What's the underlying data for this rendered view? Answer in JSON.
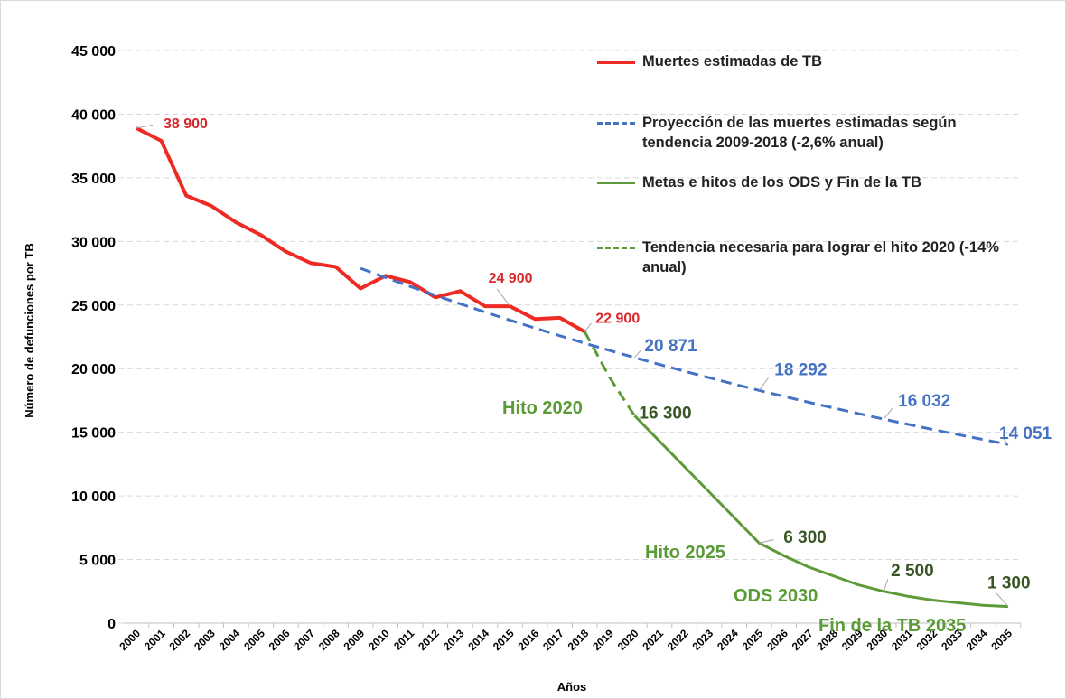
{
  "chart_data": {
    "type": "line",
    "y_label": "Número de defunciones por TB",
    "x_label": "Años",
    "categories": [
      "2000",
      "2001",
      "2002",
      "2003",
      "2004",
      "2005",
      "2006",
      "2007",
      "2008",
      "2009",
      "2010",
      "2011",
      "2012",
      "2013",
      "2014",
      "2015",
      "2016",
      "2017",
      "2018",
      "2019",
      "2020",
      "2021",
      "2022",
      "2023",
      "2024",
      "2025",
      "2026",
      "2027",
      "2028",
      "2029",
      "2030",
      "2031",
      "2032",
      "2033",
      "2034",
      "2035"
    ],
    "ylim": [
      0,
      45000
    ],
    "yticks": [
      0,
      {
        "value": 5000,
        "label": "5 000"
      },
      {
        "value": 10000,
        "label": "10 000"
      },
      {
        "value": 15000,
        "label": "15 000"
      },
      {
        "value": 20000,
        "label": "20 000"
      },
      {
        "value": 25000,
        "label": "25 000"
      },
      {
        "value": 30000,
        "label": "30 000"
      },
      {
        "value": 35000,
        "label": "35 000"
      },
      {
        "value": 40000,
        "label": "40 000"
      },
      {
        "value": 45000,
        "label": "45 000"
      }
    ],
    "grid": true,
    "series": [
      {
        "name": "Muertes estimadas de TB",
        "color": "#ee2a24",
        "label_color": "#d8262a",
        "dashed": false,
        "width": 4,
        "values": [
          38900,
          37900,
          33600,
          32800,
          31500,
          30500,
          29200,
          28300,
          28000,
          26300,
          27300,
          26800,
          25600,
          26100,
          24900,
          24900,
          23900,
          24000,
          22900,
          null,
          null,
          null,
          null,
          null,
          null,
          null,
          null,
          null,
          null,
          null,
          null,
          null,
          null,
          null,
          null,
          null
        ],
        "value_labels": [
          "38 900",
          null,
          null,
          null,
          null,
          null,
          null,
          null,
          null,
          null,
          null,
          null,
          null,
          null,
          null,
          "24 900",
          null,
          null,
          "22 900",
          null,
          null,
          null,
          null,
          null,
          null,
          null,
          null,
          null,
          null,
          null,
          null,
          null,
          null,
          null,
          null,
          null
        ]
      },
      {
        "name": "Proyección de las muertes estimadas según tendencia 2009-2018 (-2,6% anual)",
        "color": "#4472c4",
        "label_color": "#4472c4",
        "dashed": true,
        "width": 3,
        "values": [
          null,
          null,
          null,
          null,
          null,
          null,
          null,
          null,
          null,
          27884,
          27160,
          26454,
          25766,
          25096,
          24444,
          23809,
          23190,
          22587,
          22000,
          21428,
          20871,
          20328,
          19800,
          19285,
          18783,
          18292,
          17817,
          17354,
          16903,
          16463,
          16032,
          15615,
          15209,
          14814,
          14428,
          14051
        ],
        "value_labels": [
          null,
          null,
          null,
          null,
          null,
          null,
          null,
          null,
          null,
          null,
          null,
          null,
          null,
          null,
          null,
          null,
          null,
          null,
          null,
          null,
          "20 871",
          null,
          null,
          null,
          null,
          "18 292",
          null,
          null,
          null,
          null,
          "16 032",
          null,
          null,
          null,
          null,
          "14 051"
        ]
      },
      {
        "name": "Metas e hitos de los ODS y Fin de la TB",
        "color": "#5f9a3a",
        "label_color": "#375623",
        "dashed": false,
        "width": 3,
        "values": [
          null,
          null,
          null,
          null,
          null,
          null,
          null,
          null,
          null,
          null,
          null,
          null,
          null,
          null,
          null,
          null,
          null,
          null,
          null,
          null,
          16300,
          14300,
          12300,
          10300,
          8300,
          6300,
          5300,
          4400,
          3700,
          3000,
          2500,
          2100,
          1800,
          1600,
          1400,
          1300
        ],
        "value_labels": [
          null,
          null,
          null,
          null,
          null,
          null,
          null,
          null,
          null,
          null,
          null,
          null,
          null,
          null,
          null,
          null,
          null,
          null,
          null,
          null,
          "16 300",
          null,
          null,
          null,
          null,
          "6 300",
          null,
          null,
          null,
          null,
          "2 500",
          null,
          null,
          null,
          null,
          "1 300"
        ]
      },
      {
        "name": "Tendencia necesaria para lograr el hito 2020 (-14% anual)",
        "color": "#5f9a3a",
        "label_color": "#375623",
        "dashed": true,
        "width": 3,
        "values": [
          null,
          null,
          null,
          null,
          null,
          null,
          null,
          null,
          null,
          null,
          null,
          null,
          null,
          null,
          null,
          null,
          null,
          null,
          22900,
          19300,
          16300,
          null,
          null,
          null,
          null,
          null,
          null,
          null,
          null,
          null,
          null,
          null,
          null,
          null,
          null,
          null
        ]
      }
    ],
    "annotations": [
      "Hito 2020",
      "Hito 2025",
      "ODS 2030",
      "Fin de la TB  2035"
    ],
    "annotation_color": "#5b9b37"
  }
}
